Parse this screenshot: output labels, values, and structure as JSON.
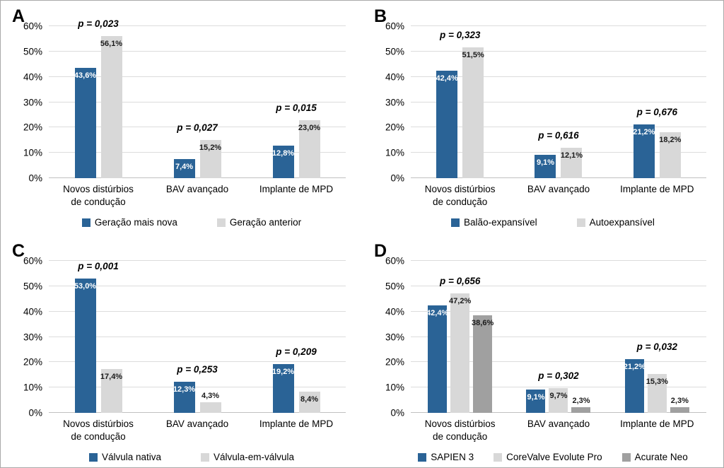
{
  "figure": {
    "background": "#ffffff",
    "border_color": "#a9a9a9"
  },
  "axis": {
    "ticks": [
      "60%",
      "50%",
      "40%",
      "30%",
      "20%",
      "10%",
      "0%"
    ],
    "max": 60,
    "step": 10,
    "gridline_color": "#dcdcdc",
    "baseline_color": "#c0c0c0"
  },
  "chart_data": [
    {
      "type": "bar",
      "panel": "A",
      "categories": [
        "Novos distúrbios\nde condução",
        "BAV avançado",
        "Implante de MPD"
      ],
      "series": [
        {
          "name": "Geração mais nova",
          "color": "#2a6396",
          "label_color": "#ffffff",
          "values": [
            43.6,
            7.4,
            12.8
          ],
          "labels": [
            "43,6%",
            "7,4%",
            "12,8%"
          ]
        },
        {
          "name": "Geração anterior",
          "color": "#d8d8d8",
          "label_color": "#1a1a1a",
          "values": [
            56.1,
            15.2,
            23.0
          ],
          "labels": [
            "56,1%",
            "15,2%",
            "23,0%"
          ]
        }
      ],
      "p_values": [
        "p = 0,023",
        "p = 0,027",
        "p = 0,015"
      ],
      "ylim": [
        0,
        60
      ],
      "grid": true,
      "legend_position": "bottom"
    },
    {
      "type": "bar",
      "panel": "B",
      "categories": [
        "Novos distúrbios\nde condução",
        "BAV avançado",
        "Implante de MPD"
      ],
      "series": [
        {
          "name": "Balão-expansível",
          "color": "#2a6396",
          "label_color": "#ffffff",
          "values": [
            42.4,
            9.1,
            21.2
          ],
          "labels": [
            "42,4%",
            "9,1%",
            "21,2%"
          ]
        },
        {
          "name": "Autoexpansível",
          "color": "#d8d8d8",
          "label_color": "#1a1a1a",
          "values": [
            51.5,
            12.1,
            18.2
          ],
          "labels": [
            "51,5%",
            "12,1%",
            "18,2%"
          ]
        }
      ],
      "p_values": [
        "p = 0,323",
        "p = 0,616",
        "p = 0,676"
      ],
      "ylim": [
        0,
        60
      ],
      "grid": true,
      "legend_position": "bottom"
    },
    {
      "type": "bar",
      "panel": "C",
      "categories": [
        "Novos distúrbios\nde condução",
        "BAV avançado",
        "Implante de MPD"
      ],
      "series": [
        {
          "name": "Válvula nativa",
          "color": "#2a6396",
          "label_color": "#ffffff",
          "values": [
            53.0,
            12.3,
            19.2
          ],
          "labels": [
            "53,0%",
            "12,3%",
            "19,2%"
          ]
        },
        {
          "name": "Válvula-em-válvula",
          "color": "#d8d8d8",
          "label_color": "#1a1a1a",
          "values": [
            17.4,
            4.3,
            8.4
          ],
          "labels": [
            "17,4%",
            "4,3%",
            "8,4%"
          ]
        }
      ],
      "p_values": [
        "p = 0,001",
        "p = 0,253",
        "p = 0,209"
      ],
      "ylim": [
        0,
        60
      ],
      "grid": true,
      "legend_position": "bottom"
    },
    {
      "type": "bar",
      "panel": "D",
      "categories": [
        "Novos distúrbios\nde condução",
        "BAV avançado",
        "Implante de MPD"
      ],
      "series": [
        {
          "name": "SAPIEN 3",
          "color": "#2a6396",
          "label_color": "#ffffff",
          "values": [
            42.4,
            9.1,
            21.2
          ],
          "labels": [
            "42,4%",
            "9,1%",
            "21,2%"
          ]
        },
        {
          "name": "CoreValve Evolute Pro",
          "color": "#d8d8d8",
          "label_color": "#1a1a1a",
          "values": [
            47.2,
            9.7,
            15.3
          ],
          "labels": [
            "47,2%",
            "9,7%",
            "15,3%"
          ]
        },
        {
          "name": "Acurate Neo",
          "color": "#a0a0a0",
          "label_color": "#1a1a1a",
          "values": [
            38.6,
            2.3,
            2.3
          ],
          "labels": [
            "38,6%",
            "2,3%",
            "2,3%"
          ]
        }
      ],
      "p_values": [
        "p = 0,656",
        "p = 0,302",
        "p = 0,032"
      ],
      "ylim": [
        0,
        60
      ],
      "grid": true,
      "legend_position": "bottom"
    }
  ]
}
